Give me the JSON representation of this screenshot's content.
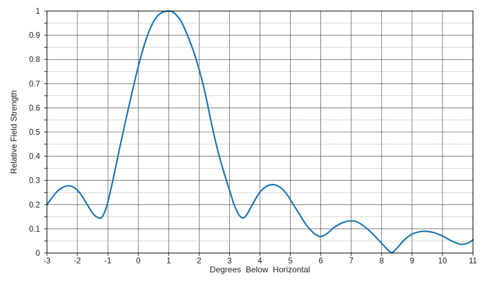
{
  "chart_data": {
    "type": "line",
    "title": "",
    "xlabel": "Degrees  Below  Horizontal",
    "ylabel": "Relative Field Strength",
    "xlim": [
      -3,
      11
    ],
    "ylim": [
      0,
      1
    ],
    "x_ticks": [
      "-3",
      "-2",
      "-1",
      "0",
      "1",
      "2",
      "3",
      "4",
      "5",
      "6",
      "7",
      "8",
      "9",
      "10",
      "11"
    ],
    "y_ticks": [
      "0",
      "0.1",
      "0.2",
      "0.3",
      "0.4",
      "0.5",
      "0.6",
      "0.7",
      "0.8",
      "0.9",
      "1"
    ],
    "grid": true,
    "legend": "none",
    "series": [
      {
        "color": "#1f77b4",
        "x": [
          -3,
          -2.7,
          -2.5,
          -2.3,
          -2.1,
          -1.9,
          -1.7,
          -1.5,
          -1.35,
          -1.22,
          -1.1,
          -1.0,
          -0.8,
          -0.6,
          -0.4,
          -0.2,
          0,
          0.2,
          0.4,
          0.6,
          0.8,
          1.0,
          1.1,
          1.2,
          1.4,
          1.6,
          1.8,
          2.0,
          2.2,
          2.4,
          2.6,
          2.8,
          3.0,
          3.15,
          3.3,
          3.42,
          3.55,
          3.75,
          4.0,
          4.25,
          4.48,
          4.7,
          4.9,
          5.1,
          5.3,
          5.5,
          5.7,
          5.85,
          6.0,
          6.2,
          6.45,
          6.75,
          7.0,
          7.2,
          7.45,
          7.7,
          7.95,
          8.15,
          8.33,
          8.5,
          8.75,
          9.0,
          9.25,
          9.45,
          9.7,
          10.0,
          10.3,
          10.6,
          10.85,
          11.0
        ],
        "y": [
          0.2,
          0.25,
          0.27,
          0.278,
          0.27,
          0.245,
          0.205,
          0.165,
          0.148,
          0.145,
          0.17,
          0.21,
          0.32,
          0.44,
          0.555,
          0.665,
          0.77,
          0.86,
          0.93,
          0.975,
          0.995,
          1.0,
          0.998,
          0.99,
          0.96,
          0.905,
          0.84,
          0.76,
          0.66,
          0.54,
          0.43,
          0.34,
          0.26,
          0.2,
          0.16,
          0.145,
          0.155,
          0.2,
          0.252,
          0.278,
          0.282,
          0.268,
          0.24,
          0.2,
          0.16,
          0.12,
          0.09,
          0.075,
          0.068,
          0.08,
          0.107,
          0.127,
          0.133,
          0.128,
          0.108,
          0.08,
          0.047,
          0.02,
          0.002,
          0.02,
          0.055,
          0.078,
          0.088,
          0.09,
          0.085,
          0.07,
          0.05,
          0.036,
          0.042,
          0.055
        ]
      }
    ]
  }
}
